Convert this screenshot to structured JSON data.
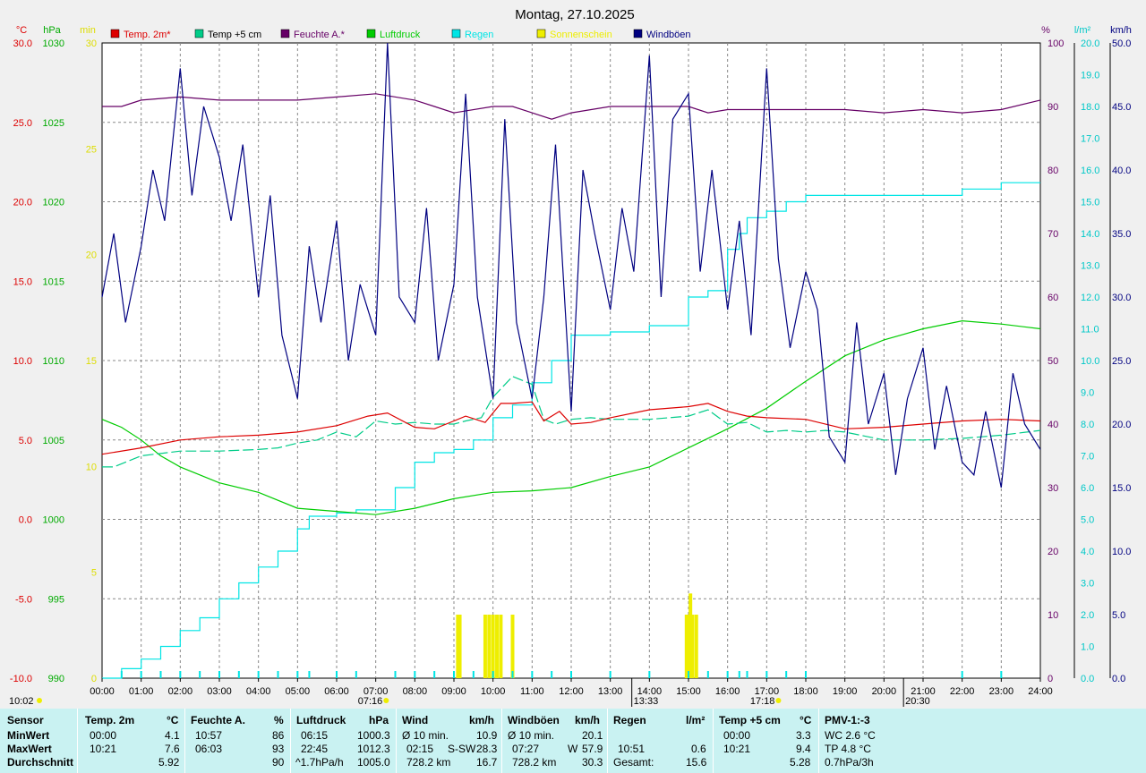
{
  "title": "Montag, 27.10.2025",
  "colors": {
    "temp": "#dd0000",
    "temp5": "#00cc88",
    "humidity": "#660066",
    "pressure": "#00cc00",
    "rain": "#00e5e5",
    "sun": "#eeee00",
    "gust": "#000080",
    "grid": "#888888",
    "stats_bg": "#c9f2f2"
  },
  "legend": [
    {
      "label": "Temp. 2m*",
      "color": "#dd0000",
      "text_color": "#dd0000"
    },
    {
      "label": "Temp +5 cm",
      "color": "#00cc88",
      "text_color": "#000000"
    },
    {
      "label": "Feuchte A.*",
      "color": "#660066",
      "text_color": "#660066"
    },
    {
      "label": "Luftdruck",
      "color": "#00cc00",
      "text_color": "#00cc00"
    },
    {
      "label": "Regen",
      "color": "#00e5e5",
      "text_color": "#00e5e5"
    },
    {
      "label": "Sonnenschein",
      "color": "#eeee00",
      "text_color": "#eeee00"
    },
    {
      "label": "Windböen",
      "color": "#000080",
      "text_color": "#000080"
    }
  ],
  "units": {
    "temp": "°C",
    "pressure": "hPa",
    "sun": "min",
    "humidity": "%",
    "rain": "l/m²",
    "wind": "km/h"
  },
  "chart_data": {
    "type": "line",
    "x_range_hours": [
      0,
      24
    ],
    "x_ticks": [
      "00:00",
      "01:00",
      "02:00",
      "03:00",
      "04:00",
      "05:00",
      "06:00",
      "07:00",
      "08:00",
      "09:00",
      "10:00",
      "11:00",
      "12:00",
      "13:00",
      "14:00",
      "15:00",
      "16:00",
      "17:00",
      "18:00",
      "19:00",
      "20:00",
      "21:00",
      "22:00",
      "23:00",
      "24:00"
    ],
    "axes": {
      "temp": {
        "range": [
          -10,
          30
        ],
        "ticks": [
          "-10.0",
          "-5.0",
          "0.0",
          "5.0",
          "10.0",
          "15.0",
          "20.0",
          "25.0",
          "30.0"
        ]
      },
      "pressure": {
        "range": [
          990,
          1030
        ],
        "ticks": [
          "990",
          "995",
          "1000",
          "1005",
          "1010",
          "1015",
          "1020",
          "1025",
          "1030"
        ]
      },
      "sun": {
        "range": [
          0,
          30
        ],
        "ticks": [
          "0",
          "5",
          "10",
          "15",
          "20",
          "25",
          "30"
        ]
      },
      "humidity": {
        "range": [
          0,
          100
        ],
        "ticks": [
          "0",
          "10",
          "20",
          "30",
          "40",
          "50",
          "60",
          "70",
          "80",
          "90",
          "100"
        ]
      },
      "rain": {
        "range": [
          0,
          20
        ],
        "ticks": [
          "0.0",
          "1.0",
          "2.0",
          "3.0",
          "4.0",
          "5.0",
          "6.0",
          "7.0",
          "8.0",
          "9.0",
          "10.0",
          "11.0",
          "12.0",
          "13.0",
          "14.0",
          "15.0",
          "16.0",
          "17.0",
          "18.0",
          "19.0",
          "20.0"
        ]
      },
      "wind": {
        "range": [
          0,
          50
        ],
        "ticks": [
          "0.0",
          "5.0",
          "10.0",
          "15.0",
          "20.0",
          "25.0",
          "30.0",
          "35.0",
          "40.0",
          "45.0",
          "50.0"
        ]
      }
    },
    "series": [
      {
        "name": "Temp. 2m*",
        "axis": "temp",
        "x": [
          0,
          1,
          2,
          3,
          4,
          5,
          6,
          6.8,
          7.3,
          8,
          8.5,
          9,
          9.3,
          9.8,
          10.2,
          10.5,
          11,
          11.3,
          11.7,
          12,
          12.5,
          13,
          14,
          15,
          15.5,
          16,
          16.5,
          17,
          18,
          19,
          20,
          21,
          22,
          23,
          24
        ],
        "y": [
          4.1,
          4.5,
          5,
          5.2,
          5.3,
          5.5,
          5.9,
          6.5,
          6.7,
          5.8,
          5.7,
          6.2,
          6.5,
          6.1,
          7.3,
          7.3,
          7.4,
          6.2,
          6.8,
          6.0,
          6.1,
          6.4,
          6.9,
          7.1,
          7.3,
          6.8,
          6.5,
          6.4,
          6.3,
          5.7,
          5.8,
          6.0,
          6.2,
          6.3,
          6.2
        ]
      },
      {
        "name": "Temp +5 cm",
        "axis": "temp",
        "x": [
          0,
          0.3,
          1,
          2,
          3,
          4,
          4.5,
          5,
          5.5,
          6,
          6.5,
          7,
          7.5,
          8,
          8.5,
          9,
          9.3,
          9.7,
          10,
          10.5,
          11,
          11.3,
          11.6,
          12,
          12.5,
          13,
          14,
          15,
          15.5,
          16,
          16.5,
          17,
          17.5,
          18,
          18.5,
          19,
          20,
          21,
          22,
          23,
          24
        ],
        "y": [
          3.3,
          3.3,
          4,
          4.3,
          4.3,
          4.4,
          4.5,
          4.8,
          5.0,
          5.5,
          5.2,
          6.2,
          6.0,
          6.1,
          6.0,
          6.0,
          6.2,
          6.4,
          7.7,
          9.0,
          8.5,
          6.3,
          6.0,
          6.3,
          6.4,
          6.3,
          6.3,
          6.5,
          6.9,
          6.0,
          6.1,
          5.5,
          5.6,
          5.5,
          5.6,
          5.5,
          5.0,
          5.0,
          5.1,
          5.3,
          5.6
        ]
      },
      {
        "name": "Feuchte A.*",
        "axis": "humidity",
        "x": [
          0,
          0.5,
          1,
          2,
          3,
          4,
          5,
          6,
          7,
          8,
          8.5,
          9,
          10,
          10.5,
          11,
          11.5,
          12,
          13,
          14,
          15,
          15.5,
          16,
          17,
          18,
          19,
          20,
          21,
          22,
          23,
          24
        ],
        "y": [
          90,
          90,
          91,
          91.5,
          91,
          91,
          91,
          91.5,
          92,
          91,
          90,
          89,
          90,
          90,
          89,
          88,
          89,
          90,
          90,
          90,
          89,
          89.5,
          89.5,
          89.5,
          89.5,
          89,
          89.5,
          89,
          89.5,
          91
        ]
      },
      {
        "name": "Luftdruck",
        "axis": "pressure",
        "x": [
          0,
          0.5,
          1,
          1.5,
          2,
          3,
          4,
          5,
          6,
          7,
          8,
          9,
          10,
          11,
          12,
          13,
          14,
          15,
          16,
          17,
          18,
          19,
          20,
          21,
          22,
          23,
          24
        ],
        "y": [
          1006.3,
          1005.8,
          1005,
          1004,
          1003.3,
          1002.3,
          1001.7,
          1000.7,
          1000.5,
          1000.3,
          1000.7,
          1001.3,
          1001.7,
          1001.8,
          1002,
          1002.7,
          1003.3,
          1004.5,
          1005.7,
          1007,
          1008.7,
          1010.3,
          1011.3,
          1012,
          1012.5,
          1012.3,
          1012
        ]
      },
      {
        "name": "Regen",
        "axis": "rain",
        "x": [
          0,
          0.5,
          1,
          1.5,
          2,
          2.5,
          3,
          3.5,
          4,
          4.5,
          5,
          5.3,
          6,
          6.5,
          7,
          7.5,
          8,
          8.5,
          9,
          9.5,
          10,
          10.5,
          11,
          11.5,
          12,
          13,
          14,
          15,
          15.5,
          16,
          16.3,
          16.5,
          17,
          17.5,
          18,
          20,
          21,
          22,
          23,
          24
        ],
        "y": [
          0,
          0.3,
          0.6,
          1,
          1.5,
          1.9,
          2.5,
          3.0,
          3.5,
          4.0,
          4.7,
          5.1,
          5.2,
          5.3,
          5.3,
          6.0,
          6.8,
          7.1,
          7.2,
          7.5,
          8.2,
          8.6,
          9.3,
          10.0,
          10.8,
          10.9,
          11.1,
          12.0,
          12.2,
          13.5,
          14.0,
          14.5,
          14.7,
          15.0,
          15.2,
          15.2,
          15.2,
          15.4,
          15.6,
          15.6
        ]
      },
      {
        "name": "Windböen",
        "axis": "wind",
        "x": [
          0,
          0.3,
          0.6,
          1,
          1.3,
          1.6,
          2,
          2.3,
          2.6,
          3,
          3.3,
          3.6,
          4,
          4.3,
          4.6,
          5,
          5.3,
          5.6,
          6,
          6.3,
          6.6,
          7,
          7.3,
          7.6,
          8,
          8.3,
          8.6,
          9,
          9.3,
          9.6,
          10,
          10.3,
          10.6,
          11,
          11.3,
          11.6,
          12,
          12.3,
          12.6,
          13,
          13.3,
          13.6,
          14,
          14.3,
          14.6,
          15,
          15.3,
          15.6,
          16,
          16.3,
          16.6,
          17,
          17.3,
          17.6,
          18,
          18.3,
          18.6,
          19,
          19.3,
          19.6,
          20,
          20.3,
          20.6,
          21,
          21.3,
          21.6,
          22,
          22.3,
          22.6,
          23,
          23.3,
          23.6,
          24
        ],
        "y": [
          30,
          35,
          28,
          34,
          40,
          36,
          48,
          38,
          45,
          41,
          36,
          42,
          30,
          38,
          27,
          22,
          34,
          28,
          36,
          25,
          31,
          27,
          50,
          30,
          28,
          37,
          25,
          31,
          46,
          30,
          22,
          44,
          28,
          22,
          30,
          42,
          21,
          40,
          35,
          29,
          37,
          32,
          49,
          30,
          44,
          46,
          32,
          40,
          29,
          36,
          27,
          48,
          33,
          26,
          32,
          29,
          19,
          17,
          28,
          20,
          24,
          16,
          22,
          26,
          18,
          23,
          17,
          16,
          21,
          15,
          24,
          20,
          18
        ]
      },
      {
        "name": "Sonnenschein",
        "axis": "sun",
        "x": [
          9.1,
          9.15,
          9.8,
          9.9,
          10.0,
          10.1,
          10.2,
          10.5,
          14.95,
          15.0,
          15.05,
          15.1,
          15.2
        ],
        "y": [
          3,
          3,
          3,
          3,
          3,
          3,
          3,
          3,
          3,
          3,
          4,
          3,
          3
        ]
      }
    ],
    "markers": {
      "sunrise": "07:16",
      "sunset": "17:18",
      "moonrise": "13:33",
      "moonset": "20:30",
      "now": "10:02"
    }
  },
  "stats": {
    "sensor_label": "Sensor",
    "row_labels": [
      "MinWert",
      "MaxWert",
      "Durchschnitt"
    ],
    "temp2m": {
      "title": "Temp. 2m",
      "unit": "°C",
      "min_time": "00:00",
      "min": "4.1",
      "max_time": "10:21",
      "max": "7.6",
      "avg": "5.92"
    },
    "humidity": {
      "title": "Feuchte A.",
      "unit": "%",
      "min_time": "10:57",
      "min": "86",
      "max_time": "06:03",
      "max": "93",
      "avg": "90"
    },
    "pressure": {
      "title": "Luftdruck",
      "unit": "hPa",
      "min_time": "06:15",
      "min": "1000.3",
      "max_time": "22:45",
      "max": "1012.3",
      "trend": "^1.7hPa/h",
      "avg": "1005.0"
    },
    "wind": {
      "title": "Wind",
      "unit": "km/h",
      "avg10_label": "Ø 10 min.",
      "avg10": "10.9",
      "max_time": "02:15",
      "max_dir": "S-SW",
      "max": "28.3",
      "distance": "728.2 km",
      "avg": "16.7"
    },
    "gust": {
      "title": "Windböen",
      "unit": "km/h",
      "avg10_label": "Ø 10 min.",
      "avg10": "20.1",
      "max_time": "07:27",
      "max_dir": "W",
      "max": "57.9",
      "distance": "728.2 km",
      "avg": "30.3"
    },
    "rain": {
      "title": "Regen",
      "unit": "l/m²",
      "max_time": "10:51",
      "max": "0.6",
      "total_label": "Gesamt:",
      "total": "15.6"
    },
    "temp5": {
      "title": "Temp +5 cm",
      "unit": "°C",
      "min_time": "00:00",
      "min": "3.3",
      "max_time": "10:21",
      "max": "9.4",
      "avg": "5.28"
    },
    "pmv": {
      "title": "PMV-1:-3",
      "wc": "WC 2.6 °C",
      "tp": "TP 4.8 °C",
      "trend": "0.7hPa/3h"
    }
  }
}
